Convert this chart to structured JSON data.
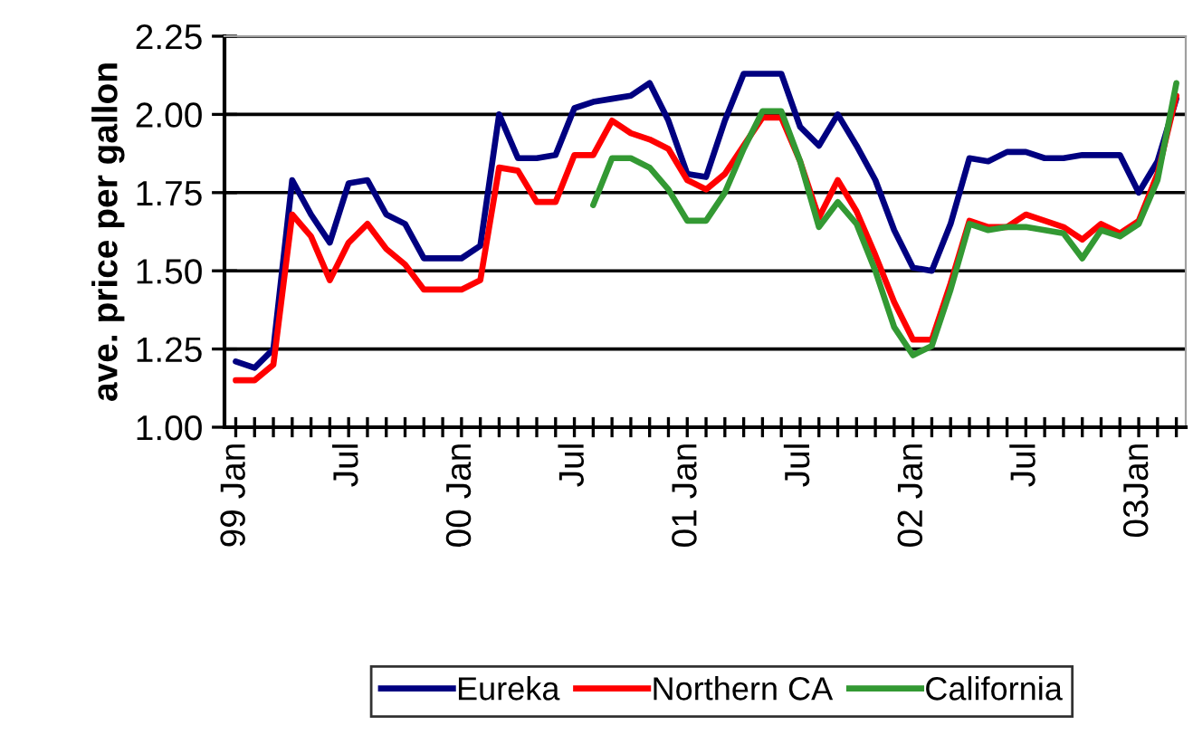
{
  "chart_data": {
    "type": "line",
    "ylabel": "ave. price per gallon",
    "categories": [
      "99 Jan",
      null,
      null,
      null,
      null,
      null,
      "Jul",
      null,
      null,
      null,
      null,
      null,
      "00 Jan",
      null,
      null,
      null,
      null,
      null,
      "Jul",
      null,
      null,
      null,
      null,
      null,
      "01 Jan",
      null,
      null,
      null,
      null,
      null,
      "Jul",
      null,
      null,
      null,
      null,
      null,
      "02 Jan",
      null,
      null,
      null,
      null,
      null,
      "Jul",
      null,
      null,
      null,
      null,
      null,
      "03Jan",
      null,
      null
    ],
    "series": [
      {
        "name": "Eureka",
        "color": "#000080",
        "values": [
          1.21,
          1.19,
          1.25,
          1.79,
          1.68,
          1.59,
          1.78,
          1.79,
          1.68,
          1.65,
          1.54,
          1.54,
          1.54,
          1.58,
          2.0,
          1.86,
          1.86,
          1.87,
          2.02,
          2.04,
          2.05,
          2.06,
          2.1,
          1.98,
          1.81,
          1.8,
          1.98,
          2.13,
          2.13,
          2.13,
          1.96,
          1.9,
          2.0,
          1.9,
          1.79,
          1.63,
          1.51,
          1.5,
          1.65,
          1.86,
          1.85,
          1.88,
          1.88,
          1.86,
          1.86,
          1.87,
          1.87,
          1.87,
          1.75,
          1.85,
          2.05
        ]
      },
      {
        "name": "Northern CA",
        "color": "#ff0000",
        "values": [
          1.15,
          1.15,
          1.2,
          1.68,
          1.61,
          1.47,
          1.59,
          1.65,
          1.57,
          1.52,
          1.44,
          1.44,
          1.44,
          1.47,
          1.83,
          1.82,
          1.72,
          1.72,
          1.87,
          1.87,
          1.98,
          1.94,
          1.92,
          1.89,
          1.79,
          1.76,
          1.81,
          1.9,
          1.99,
          1.99,
          1.85,
          1.67,
          1.79,
          1.69,
          1.55,
          1.4,
          1.28,
          1.28,
          1.46,
          1.66,
          1.64,
          1.64,
          1.68,
          1.66,
          1.64,
          1.6,
          1.65,
          1.62,
          1.66,
          1.81,
          2.06
        ]
      },
      {
        "name": "California",
        "color": "#339933",
        "values": [
          null,
          null,
          null,
          null,
          null,
          null,
          null,
          null,
          null,
          null,
          null,
          null,
          null,
          null,
          null,
          null,
          null,
          null,
          null,
          1.71,
          1.86,
          1.86,
          1.83,
          1.76,
          1.66,
          1.66,
          1.75,
          1.89,
          2.01,
          2.01,
          1.85,
          1.64,
          1.72,
          1.65,
          1.5,
          1.32,
          1.23,
          1.26,
          1.44,
          1.65,
          1.63,
          1.64,
          1.64,
          1.63,
          1.62,
          1.54,
          1.63,
          1.61,
          1.65,
          1.79,
          2.1
        ]
      }
    ],
    "ylim": [
      1.0,
      2.25
    ],
    "yticks": [
      {
        "value": 1.0,
        "label": "1.00"
      },
      {
        "value": 1.25,
        "label": "1.25"
      },
      {
        "value": 1.5,
        "label": "1.50"
      },
      {
        "value": 1.75,
        "label": "1.75"
      },
      {
        "value": 2.0,
        "label": "2.00"
      },
      {
        "value": 2.25,
        "label": "2.25"
      }
    ],
    "grid": "y",
    "legend": "bottom",
    "marker": "none",
    "line_style": "solid"
  }
}
